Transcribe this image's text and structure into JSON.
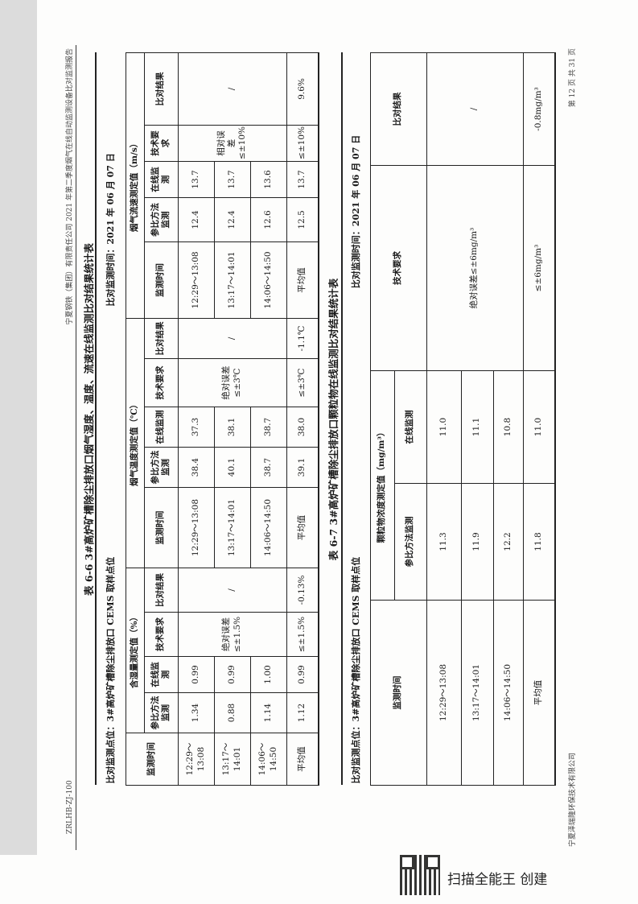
{
  "header": {
    "doc_code": "ZRLHB-ZJ-100",
    "report_title": "宁夏钢铁（集团）有限责任公司 2021 年第二季度烟气在线自动监测设备比对监测报告"
  },
  "table66": {
    "title": "表 6-6    3#高炉矿槽除尘排放口烟气湿度、温度、流速在线监测比对结果统计表",
    "point": "比对监测点位：3#高炉矿槽除尘排放口 CEMS 取样点位",
    "date": "比对监测时间：2021 年 06 月 07 日",
    "groups": [
      "含湿量测定值（%）",
      "烟气温度测定值（℃）",
      "烟气流速测定值（m/s）"
    ],
    "cols": {
      "time": "监测时间",
      "ref": "参比方法监测",
      "online": "在线监测",
      "req": "技术要求",
      "result": "比对结果"
    },
    "times": [
      "12:29～13:08",
      "13:17～14:01",
      "14:06～14:50"
    ],
    "avg_label": "平均值",
    "humidity": {
      "ref": [
        "1.34",
        "0.88",
        "1.14"
      ],
      "online": [
        "0.99",
        "0.99",
        "1.00"
      ],
      "req": "绝对误差≤±1.5%",
      "result": "/",
      "avg_ref": "1.12",
      "avg_online": "0.99",
      "avg_req": "≤±1.5%",
      "avg_result": "-0.13%"
    },
    "temperature": {
      "ref": [
        "38.4",
        "40.1",
        "38.7"
      ],
      "online": [
        "37.3",
        "38.1",
        "38.7"
      ],
      "req": "绝对误差≤±3℃",
      "result": "/",
      "avg_ref": "39.1",
      "avg_online": "38.0",
      "avg_req": "≤±3℃",
      "avg_result": "-1.1℃"
    },
    "flow": {
      "ref": [
        "12.4",
        "12.4",
        "12.6"
      ],
      "online": [
        "13.7",
        "13.7",
        "13.6"
      ],
      "req": "相对误差≤±10%",
      "result": "/",
      "avg_ref": "12.5",
      "avg_online": "13.7",
      "avg_req": "≤±10%",
      "avg_result": "9.6%"
    }
  },
  "table67": {
    "title": "表 6-7    3#高炉矿槽除尘排放口颗粒物在线监测比对结果统计表",
    "point": "比对监测点位：3#高炉矿槽除尘排放口 CEMS 取样点位",
    "date": "比对监测时间：2021 年 06 月 07 日",
    "group": "颗粒物浓度测定值（mg/m³）",
    "cols": {
      "time": "监测时间",
      "ref": "参比方法监测",
      "online": "在线监测",
      "req": "技术要求",
      "result": "比对结果"
    },
    "times": [
      "12:29～13:08",
      "13:17～14:01",
      "14:06～14:50"
    ],
    "ref": [
      "11.3",
      "11.9",
      "12.2"
    ],
    "online": [
      "11.0",
      "11.1",
      "10.8"
    ],
    "req": "绝对误差≤±6mg/m³",
    "result": "/",
    "avg_label": "平均值",
    "avg_ref": "11.8",
    "avg_online": "11.0",
    "avg_req": "≤±6mg/m³",
    "avg_result": "-0.8mg/m³"
  },
  "footer": {
    "company": "宁夏泽瑞隆环保技术有限公司",
    "page": "第 12 页  共 31 页"
  },
  "watermark": {
    "qr": "qr-code",
    "text": "扫描全能王 创建"
  }
}
